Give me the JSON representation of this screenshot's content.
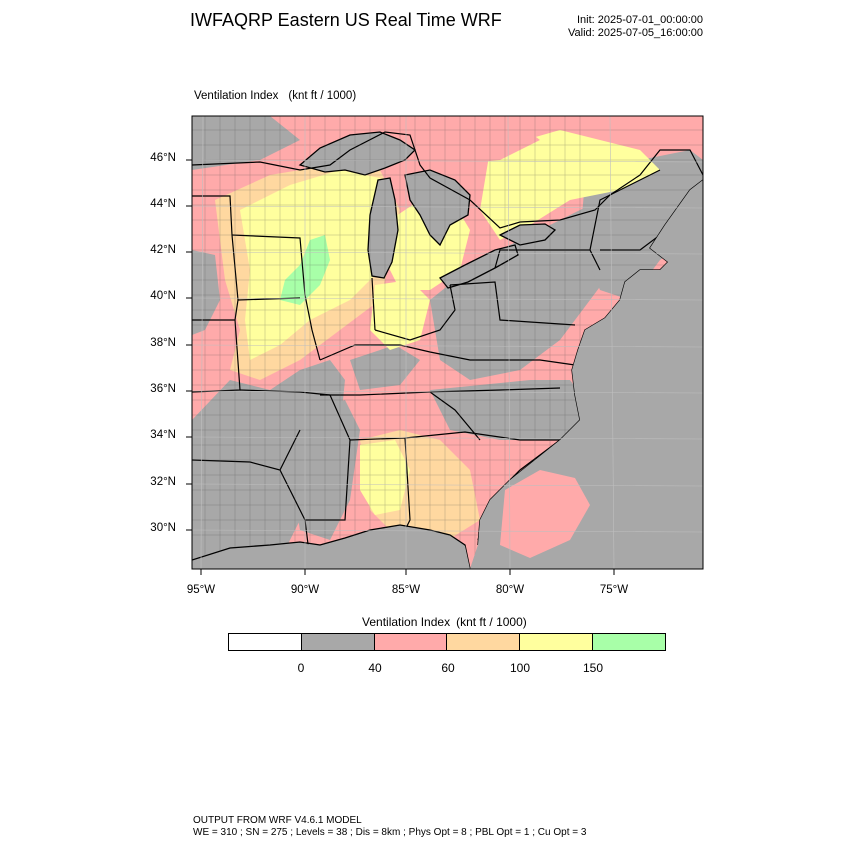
{
  "header": {
    "title": "IWFAQRP Eastern US Real Time WRF",
    "init": "Init: 2025-07-01_00:00:00",
    "valid": "Valid: 2025-07-05_16:00:00"
  },
  "map": {
    "variable": "Ventilation Index",
    "units": "(knt ft / 1000)",
    "lat_labels": [
      "46°N",
      "44°N",
      "42°N",
      "40°N",
      "38°N",
      "36°N",
      "34°N",
      "32°N",
      "30°N"
    ],
    "lon_labels": [
      "95°W",
      "90°W",
      "85°W",
      "80°W",
      "75°W"
    ],
    "ocean_color": "#a8a8a8",
    "lake_color": "#a8a8a8"
  },
  "colorbar": {
    "title": "Ventilation Index",
    "units": "(knt ft / 1000)",
    "colors": [
      "#ffffff",
      "#a8a8a8",
      "#ffaaaa",
      "#ffd8a0",
      "#ffff9e",
      "#a8ffa8"
    ],
    "ticks": [
      "0",
      "40",
      "60",
      "100",
      "150"
    ]
  },
  "footer": {
    "line1": "OUTPUT FROM WRF V4.6.1 MODEL",
    "line2": "WE = 310 ; SN = 275 ; Levels = 38 ; Dis = 8km ; Phys Opt = 8 ; PBL Opt = 1 ; Cu Opt = 3"
  }
}
